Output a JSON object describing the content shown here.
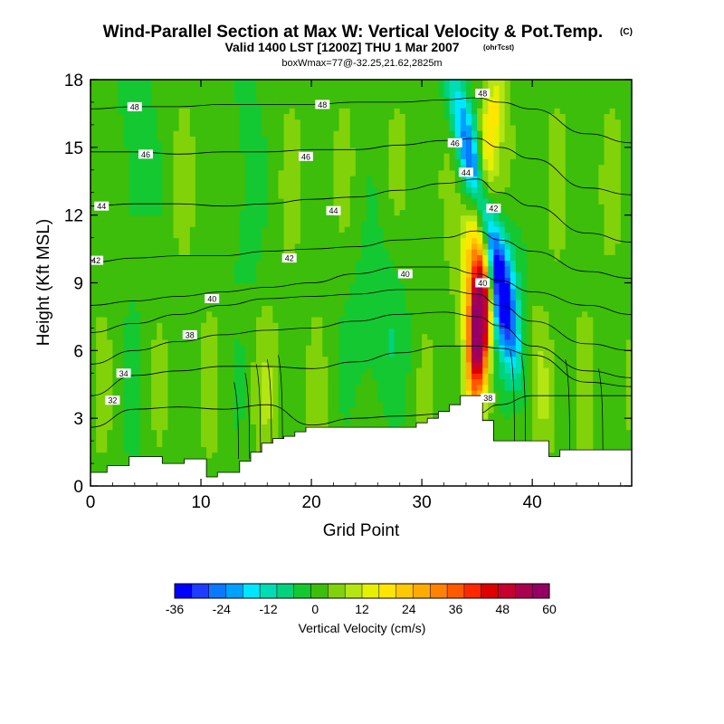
{
  "chart_data": {
    "type": "heatmap",
    "title": "Wind-Parallel Section at Max W: Vertical Velocity & Pot.Temp.",
    "title_mark": "(C)",
    "subtitle": "Valid 1400 LST [1200Z] THU 1 Mar 2007",
    "subtitle_mark": "(ohrTcst)",
    "subtitle2": "boxWmax=77@-32.25,21.62,2825m",
    "xlabel": "Grid Point",
    "ylabel": "Height (Kft MSL)",
    "xlim": [
      0,
      49
    ],
    "ylim": [
      0,
      18
    ],
    "x_ticks": [
      0,
      10,
      20,
      30,
      40
    ],
    "y_ticks": [
      0,
      3,
      6,
      9,
      12,
      15,
      18
    ],
    "colorbar": {
      "label": "Vertical Velocity (cm/s)",
      "min": -36,
      "max": 60,
      "step": 4,
      "tick_values": [
        -36,
        -24,
        -12,
        0,
        12,
        24,
        36,
        48,
        60
      ],
      "colors": [
        "#0000ff",
        "#1e3cff",
        "#0a78ff",
        "#00a0ff",
        "#00e6ff",
        "#00dcb4",
        "#00d27d",
        "#14c832",
        "#3cbe0a",
        "#82d20a",
        "#b4e614",
        "#e6f000",
        "#ffe600",
        "#ffc800",
        "#ffaa00",
        "#ff8200",
        "#ff5a00",
        "#ff2800",
        "#dc0000",
        "#c8002d",
        "#aa0050",
        "#960064"
      ]
    },
    "terrain_kft": [
      0.6,
      0.6,
      0.9,
      0.9,
      1.3,
      1.3,
      1.3,
      1.0,
      1.0,
      1.2,
      1.2,
      0.4,
      0.6,
      0.6,
      1.1,
      1.5,
      1.9,
      2.1,
      2.2,
      2.4,
      2.6,
      2.6,
      2.6,
      2.6,
      2.6,
      2.6,
      2.6,
      2.6,
      2.6,
      2.6,
      2.8,
      3.0,
      3.3,
      3.6,
      4.0,
      4.0,
      2.9,
      2.0,
      2.0,
      2.0,
      2.0,
      2.0,
      1.3,
      1.6,
      1.6,
      1.6,
      1.6,
      1.6,
      1.6,
      1.6
    ],
    "theta_contours": [
      {
        "label": "32",
        "y_kft": [
          2.6,
          3.4,
          3.5,
          3.4,
          3.6,
          2.7,
          3.0,
          3.1,
          3.2,
          3.2,
          3.6,
          4.0,
          4.0,
          4.0
        ]
      },
      {
        "label": "34",
        "y_kft": [
          4.0,
          4.9,
          5.1,
          5.3,
          5.3,
          5.2,
          5.5,
          5.9,
          6.2,
          6.2,
          6.1,
          5.8,
          4.6,
          4.4
        ]
      },
      {
        "label": "36",
        "y_kft": [
          5.4,
          6.0,
          6.4,
          6.7,
          6.9,
          7.0,
          7.3,
          7.6,
          7.7,
          7.5,
          7.1,
          6.2,
          5.1,
          4.8
        ]
      },
      {
        "label": "38",
        "y_kft": [
          6.8,
          7.2,
          7.6,
          8.0,
          8.3,
          8.4,
          8.5,
          8.7,
          8.7,
          8.5,
          8.0,
          7.3,
          6.3,
          6.0
        ]
      },
      {
        "label": "40",
        "y_kft": [
          8.0,
          8.2,
          8.4,
          8.6,
          8.8,
          9.0,
          9.4,
          9.7,
          9.7,
          9.4,
          9.1,
          8.6,
          8.0,
          7.6
        ]
      },
      {
        "label": "42",
        "y_kft": [
          9.9,
          10.1,
          10.2,
          10.2,
          10.4,
          10.5,
          10.6,
          10.9,
          11.0,
          11.3,
          10.9,
          10.4,
          9.5,
          9.2
        ]
      },
      {
        "label": "44",
        "y_kft": [
          12.4,
          12.5,
          12.5,
          12.4,
          12.5,
          12.7,
          12.8,
          13.1,
          13.4,
          13.6,
          13.0,
          12.4,
          11.2,
          10.8
        ]
      },
      {
        "label": "46",
        "y_kft": [
          14.8,
          14.8,
          14.7,
          14.8,
          14.8,
          14.9,
          14.9,
          15.1,
          15.3,
          15.4,
          15.0,
          14.5,
          13.2,
          12.9
        ]
      },
      {
        "label": "48",
        "y_kft": [
          16.7,
          16.8,
          16.8,
          16.9,
          16.9,
          16.9,
          17.0,
          17.0,
          17.1,
          17.2,
          17.0,
          16.7,
          15.6,
          15.2
        ]
      }
    ],
    "theta_x_points": [
      0,
      4,
      8,
      12,
      16,
      20,
      24,
      28,
      32,
      35,
      37,
      40,
      45,
      49
    ],
    "contour_labels": [
      {
        "text": "48",
        "x": 4,
        "y_kft": 16.8
      },
      {
        "text": "48",
        "x": 21,
        "y_kft": 16.9
      },
      {
        "text": "46",
        "x": 5,
        "y_kft": 14.7
      },
      {
        "text": "46",
        "x": 19.5,
        "y_kft": 14.6
      },
      {
        "text": "46",
        "x": 33,
        "y_kft": 15.2
      },
      {
        "text": "44",
        "x": 1,
        "y_kft": 12.4
      },
      {
        "text": "44",
        "x": 22,
        "y_kft": 12.2
      },
      {
        "text": "44",
        "x": 34,
        "y_kft": 13.9
      },
      {
        "text": "42",
        "x": 0.5,
        "y_kft": 10.0
      },
      {
        "text": "42",
        "x": 18,
        "y_kft": 10.1
      },
      {
        "text": "42",
        "x": 36.5,
        "y_kft": 12.3
      },
      {
        "text": "40",
        "x": 11,
        "y_kft": 8.3
      },
      {
        "text": "40",
        "x": 28.5,
        "y_kft": 9.4
      },
      {
        "text": "40",
        "x": 35.5,
        "y_kft": 9.0
      },
      {
        "text": "38",
        "x": 9,
        "y_kft": 6.7
      },
      {
        "text": "38",
        "x": 36,
        "y_kft": 3.9
      },
      {
        "text": "34",
        "x": 3,
        "y_kft": 5.0
      },
      {
        "text": "32",
        "x": 2,
        "y_kft": 3.8
      },
      {
        "text": "48",
        "x": 35.5,
        "y_kft": 17.4
      }
    ]
  }
}
